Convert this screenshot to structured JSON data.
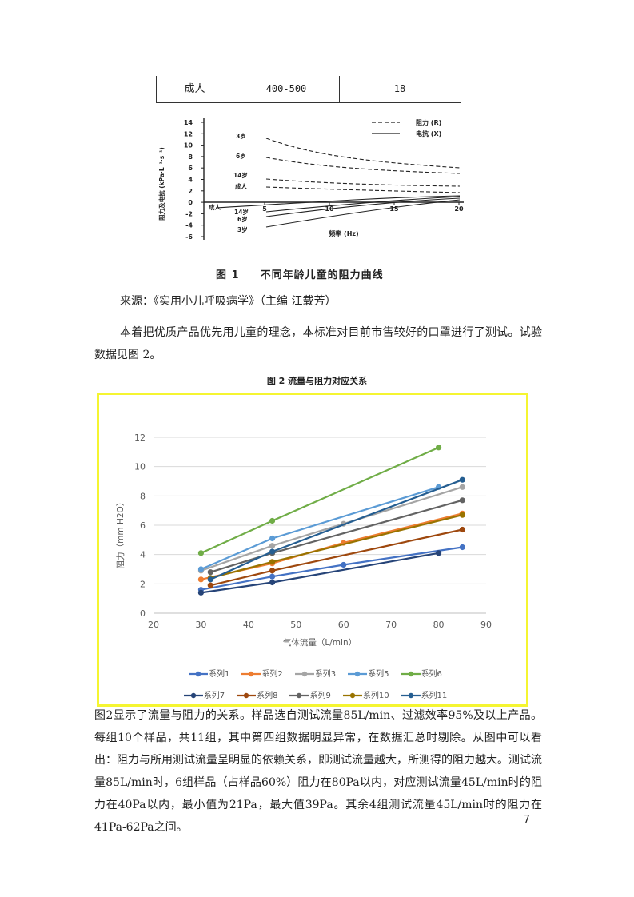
{
  "table_row": {
    "group": "成人",
    "range": "400-500",
    "value": "18"
  },
  "figure1": {
    "caption_num": "图 1",
    "caption_text": "不同年龄儿童的阻力曲线",
    "ylabel": "阻力及电抗 (kPa·L⁻¹·s⁻¹)",
    "xlabel": "频率 (Hz)",
    "legend_r": "阻力 (R)",
    "legend_x": "电抗 (X)",
    "yticks": [
      "14",
      "12",
      "10",
      "8",
      "6",
      "4",
      "2",
      "0",
      "-2",
      "-4",
      "-6"
    ],
    "xticks": [
      "5",
      "10",
      "15",
      "20"
    ],
    "label_start": "成人",
    "labels_r": [
      "3岁",
      "6岁",
      "14岁",
      "成人"
    ],
    "labels_x": [
      "14岁",
      "6岁",
      "3岁"
    ]
  },
  "source_line": "来源：《实用小儿呼吸病学》（主编 江载芳）",
  "paragraph1": "本着把优质产品优先用儿童的理念，本标准对目前市售较好的口罩进行了测试。试验数据见图 2。",
  "figure2_caption": "图 2 流量与阻力对应关系",
  "chart_data": {
    "type": "line",
    "title": "",
    "xlabel": "气体流量（L/min）",
    "ylabel": "阻力（mm H2O）",
    "xlim": [
      20,
      90
    ],
    "ylim": [
      0,
      12
    ],
    "xticks": [
      20,
      30,
      40,
      50,
      60,
      70,
      80,
      90
    ],
    "yticks": [
      0,
      2,
      4,
      6,
      8,
      10,
      12
    ],
    "grid": true,
    "legend_position": "bottom",
    "series": [
      {
        "name": "系列1",
        "color": "#4472c4",
        "points": [
          [
            30,
            1.6
          ],
          [
            45,
            2.5
          ],
          [
            60,
            3.3
          ],
          [
            85,
            4.5
          ]
        ]
      },
      {
        "name": "系列2",
        "color": "#ed7d31",
        "points": [
          [
            30,
            2.3
          ],
          [
            45,
            3.4
          ],
          [
            60,
            4.8
          ],
          [
            85,
            6.8
          ]
        ]
      },
      {
        "name": "系列3",
        "color": "#a5a5a5",
        "points": [
          [
            30,
            2.9
          ],
          [
            45,
            4.6
          ],
          [
            60,
            6.1
          ],
          [
            85,
            8.6
          ]
        ]
      },
      {
        "name": "系列5",
        "color": "#5b9bd5",
        "points": [
          [
            30,
            3.0
          ],
          [
            45,
            5.1
          ],
          [
            80,
            8.6
          ]
        ]
      },
      {
        "name": "系列6",
        "color": "#70ad47",
        "points": [
          [
            30,
            4.1
          ],
          [
            45,
            6.3
          ],
          [
            80,
            11.3
          ]
        ]
      },
      {
        "name": "系列7",
        "color": "#264478",
        "points": [
          [
            30,
            1.4
          ],
          [
            45,
            2.1
          ],
          [
            80,
            4.1
          ]
        ]
      },
      {
        "name": "系列8",
        "color": "#9e480e",
        "points": [
          [
            32,
            1.9
          ],
          [
            45,
            2.9
          ],
          [
            85,
            5.7
          ]
        ]
      },
      {
        "name": "系列9",
        "color": "#636363",
        "points": [
          [
            32,
            2.8
          ],
          [
            45,
            4.1
          ],
          [
            85,
            7.7
          ]
        ]
      },
      {
        "name": "系列10",
        "color": "#997300",
        "points": [
          [
            32,
            2.4
          ],
          [
            45,
            3.5
          ],
          [
            85,
            6.7
          ]
        ]
      },
      {
        "name": "系列11",
        "color": "#255e91",
        "points": [
          [
            32,
            2.3
          ],
          [
            45,
            4.2
          ],
          [
            85,
            9.1
          ]
        ]
      }
    ]
  },
  "paragraph2": "图2显示了流量与阻力的关系。样品选自测试流量85L/min、过滤效率95%及以上产品。每组10个样品，共11组，其中第四组数据明显异常，在数据汇总时剔除。从图中可以看出：阻力与所用测试流量呈明显的依赖关系，即测试流量越大，所测得的阻力越大。测试流量85L/min时，6组样品（占样品60%）阻力在80Pa以内，对应测试流量45L/min时的阻力在40Pa以内，最小值为21Pa，最大值39Pa。其余4组测试流量45L/min时的阻力在41Pa-62Pa之间。",
  "page_number": "7"
}
